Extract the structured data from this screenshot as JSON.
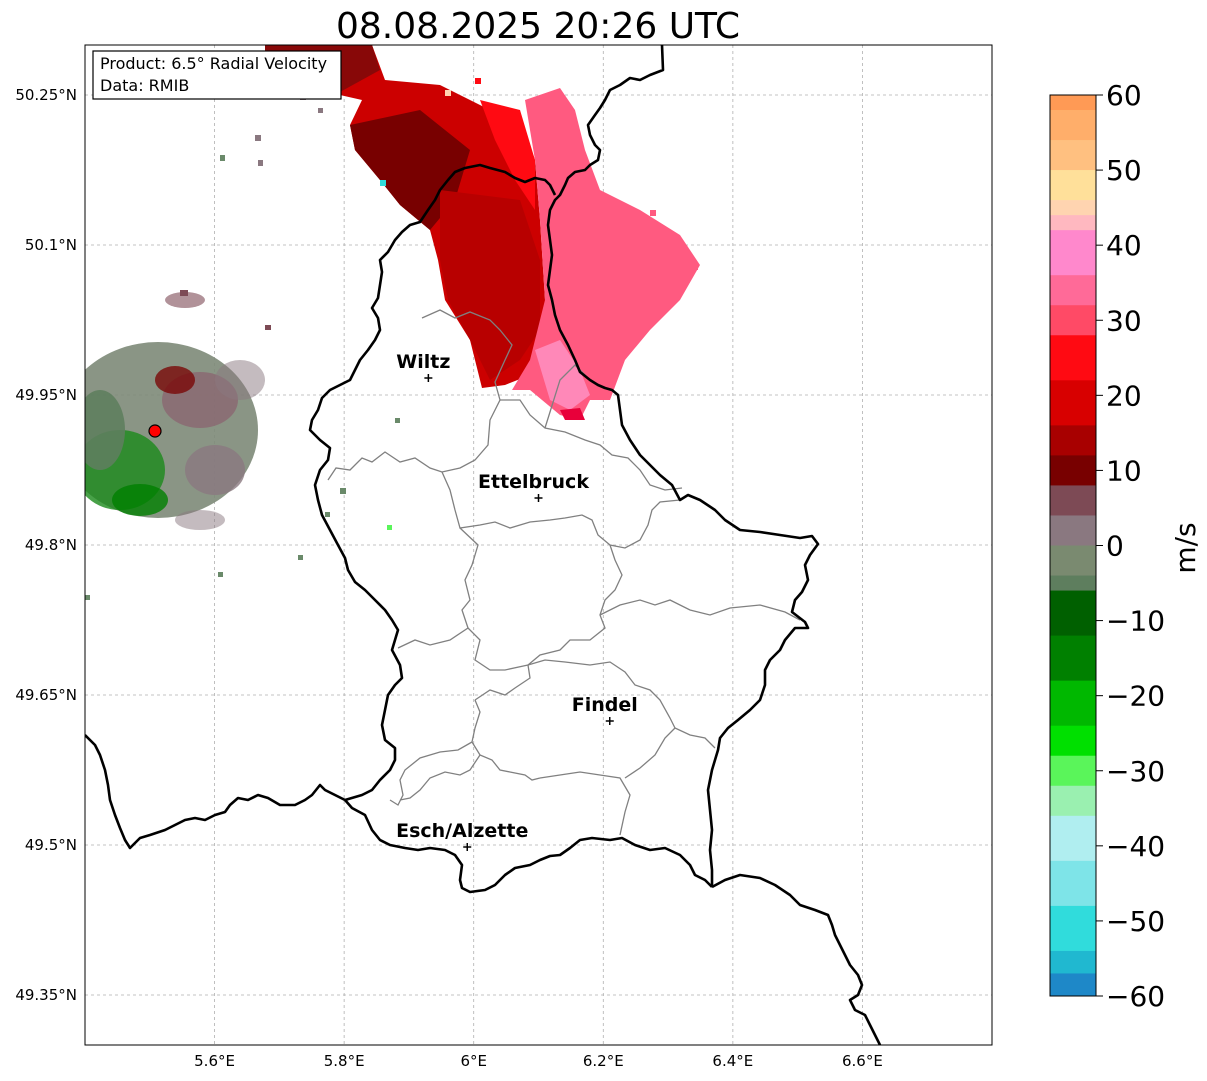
{
  "title": "08.08.2025 20:26 UTC",
  "info_box": {
    "product": "Product: 6.5° Radial Velocity",
    "source": "Data: RMIB"
  },
  "map": {
    "lon_range": [
      5.4,
      6.8
    ],
    "lat_range": [
      49.3,
      50.3
    ],
    "x_ticks": [
      {
        "value": 5.6,
        "label": "5.6°E"
      },
      {
        "value": 5.8,
        "label": "5.8°E"
      },
      {
        "value": 6.0,
        "label": "6°E"
      },
      {
        "value": 6.2,
        "label": "6.2°E"
      },
      {
        "value": 6.4,
        "label": "6.4°E"
      },
      {
        "value": 6.6,
        "label": "6.6°E"
      }
    ],
    "y_ticks": [
      {
        "value": 50.25,
        "label": "50.25°N"
      },
      {
        "value": 50.1,
        "label": "50.1°N"
      },
      {
        "value": 49.95,
        "label": "49.95°N"
      },
      {
        "value": 49.8,
        "label": "49.8°N"
      },
      {
        "value": 49.65,
        "label": "49.65°N"
      },
      {
        "value": 49.5,
        "label": "49.5°N"
      },
      {
        "value": 49.35,
        "label": "49.35°N"
      }
    ],
    "cities": [
      {
        "name": "Wiltz",
        "lon": 5.93,
        "lat": 49.967
      },
      {
        "name": "Ettelbruck",
        "lon": 6.1,
        "lat": 49.847
      },
      {
        "name": "Findel",
        "lon": 6.21,
        "lat": 49.624
      },
      {
        "name": "Esch/Alzette",
        "lon": 5.99,
        "lat": 49.498
      }
    ],
    "radar_site": {
      "lon": 5.505,
      "lat": 49.914
    }
  },
  "colorbar": {
    "label": "m/s",
    "range": [
      -60,
      60
    ],
    "ticks": [
      {
        "value": 60,
        "label": "60"
      },
      {
        "value": 50,
        "label": "50"
      },
      {
        "value": 40,
        "label": "40"
      },
      {
        "value": 30,
        "label": "30"
      },
      {
        "value": 20,
        "label": "20"
      },
      {
        "value": 10,
        "label": "10"
      },
      {
        "value": 0,
        "label": "0"
      },
      {
        "value": -10,
        "label": "−10"
      },
      {
        "value": -20,
        "label": "−20"
      },
      {
        "value": -30,
        "label": "−30"
      },
      {
        "value": -40,
        "label": "−40"
      },
      {
        "value": -50,
        "label": "−50"
      },
      {
        "value": -60,
        "label": "−60"
      }
    ],
    "stops": [
      {
        "from": 58,
        "to": 60,
        "color": "#ff9a55"
      },
      {
        "from": 54,
        "to": 58,
        "color": "#ffae6a"
      },
      {
        "from": 50,
        "to": 54,
        "color": "#ffc080"
      },
      {
        "from": 46,
        "to": 50,
        "color": "#ffe09a"
      },
      {
        "from": 44,
        "to": 46,
        "color": "#ffd4b0"
      },
      {
        "from": 42,
        "to": 44,
        "color": "#ffb8c0"
      },
      {
        "from": 36,
        "to": 42,
        "color": "#ff88cc"
      },
      {
        "from": 32,
        "to": 36,
        "color": "#ff6a98"
      },
      {
        "from": 28,
        "to": 32,
        "color": "#ff4a66"
      },
      {
        "from": 22,
        "to": 28,
        "color": "#ff0a12"
      },
      {
        "from": 16,
        "to": 22,
        "color": "#d80000"
      },
      {
        "from": 12,
        "to": 16,
        "color": "#a80000"
      },
      {
        "from": 8,
        "to": 12,
        "color": "#780000"
      },
      {
        "from": 4,
        "to": 8,
        "color": "#7d4a55"
      },
      {
        "from": 0,
        "to": 4,
        "color": "#8a7880"
      },
      {
        "from": -4,
        "to": 0,
        "color": "#7a8a70"
      },
      {
        "from": -6,
        "to": -4,
        "color": "#5e7e5e"
      },
      {
        "from": -12,
        "to": -6,
        "color": "#006000"
      },
      {
        "from": -18,
        "to": -12,
        "color": "#008000"
      },
      {
        "from": -24,
        "to": -18,
        "color": "#00b800"
      },
      {
        "from": -28,
        "to": -24,
        "color": "#00e000"
      },
      {
        "from": -32,
        "to": -28,
        "color": "#5af55a"
      },
      {
        "from": -36,
        "to": -32,
        "color": "#9af0b0"
      },
      {
        "from": -42,
        "to": -36,
        "color": "#b0eef0"
      },
      {
        "from": -48,
        "to": -42,
        "color": "#7ee4e8"
      },
      {
        "from": -54,
        "to": -48,
        "color": "#30dcdc"
      },
      {
        "from": -57,
        "to": -54,
        "color": "#20b8d0"
      },
      {
        "from": -60,
        "to": -57,
        "color": "#1e88c8"
      }
    ]
  }
}
